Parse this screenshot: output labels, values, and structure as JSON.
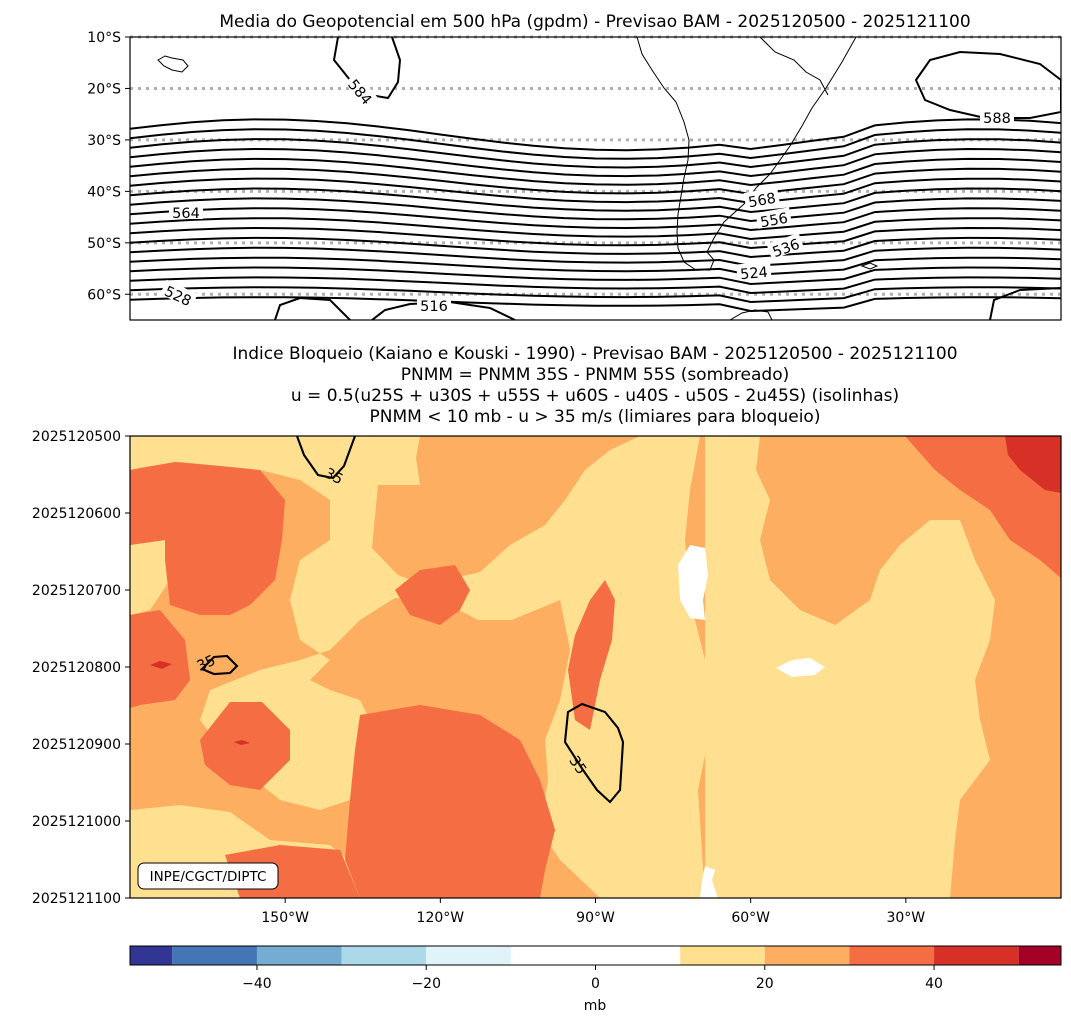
{
  "chart_data": [
    {
      "type": "contour_map",
      "title": "Media do Geopotencial em 500 hPa (gpdm) - Previsao BAM - 2025120500 - 2025121100",
      "ylim": [
        -65,
        -10
      ],
      "xlim": [
        -180,
        0
      ],
      "ytick_labels": [
        "10°S",
        "20°S",
        "30°S",
        "40°S",
        "50°S",
        "60°S"
      ],
      "ytick_values": [
        -10,
        -20,
        -30,
        -40,
        -50,
        -60
      ],
      "grid": "dotted latitude lines",
      "contour_labels": [
        "584",
        "588",
        "564",
        "568",
        "556",
        "536",
        "524",
        "528",
        "516"
      ],
      "contour_interval": 4,
      "contour_range": [
        516,
        588
      ]
    },
    {
      "type": "filled_contour",
      "title_lines": [
        "Indice Bloqueio (Kaiano e Kouski - 1990) - Previsao BAM - 2025120500 - 2025121100",
        "PNMM = PNMM 35S - PNMM 55S (sombreado)",
        "u = 0.5(u25S + u30S + u55S + u60S - u40S - u50S - 2u45S) (isolinhas)",
        "PNMM < 10 mb - u > 35 m/s (limiares para bloqueio)"
      ],
      "xlim": [
        -180,
        0
      ],
      "xtick_values": [
        -150,
        -120,
        -90,
        -60,
        -30
      ],
      "xtick_labels": [
        "150°W",
        "120°W",
        "90°W",
        "60°W",
        "30°W"
      ],
      "ytick_labels": [
        "2025120500",
        "2025120600",
        "2025120700",
        "2025120800",
        "2025120900",
        "2025121000",
        "2025121100"
      ],
      "shading_levels": [
        10,
        20,
        30,
        40
      ],
      "dominant_ranges": {
        "west_lobes": "30-40",
        "background": "20-30",
        "pale_bands": "10-20",
        "white_patches": "0-10"
      },
      "isoline_value": 35,
      "isoline_labels": [
        "35",
        "35",
        "35"
      ],
      "credit": "INPE/CGCT/DIPTC"
    },
    {
      "type": "colorbar",
      "levels": [
        -55,
        -50,
        -40,
        -30,
        -20,
        -10,
        10,
        20,
        30,
        40,
        50,
        55
      ],
      "colors": [
        "#313695",
        "#4575b4",
        "#74add1",
        "#abd9e9",
        "#e0f3f8",
        "#ffffff",
        "#fee090",
        "#fdae61",
        "#f46d43",
        "#d73027",
        "#a50026"
      ],
      "tick_values": [
        -40,
        -20,
        0,
        20,
        40
      ],
      "tick_labels": [
        "−40",
        "−20",
        "0",
        "20",
        "40"
      ],
      "label": "mb"
    }
  ]
}
